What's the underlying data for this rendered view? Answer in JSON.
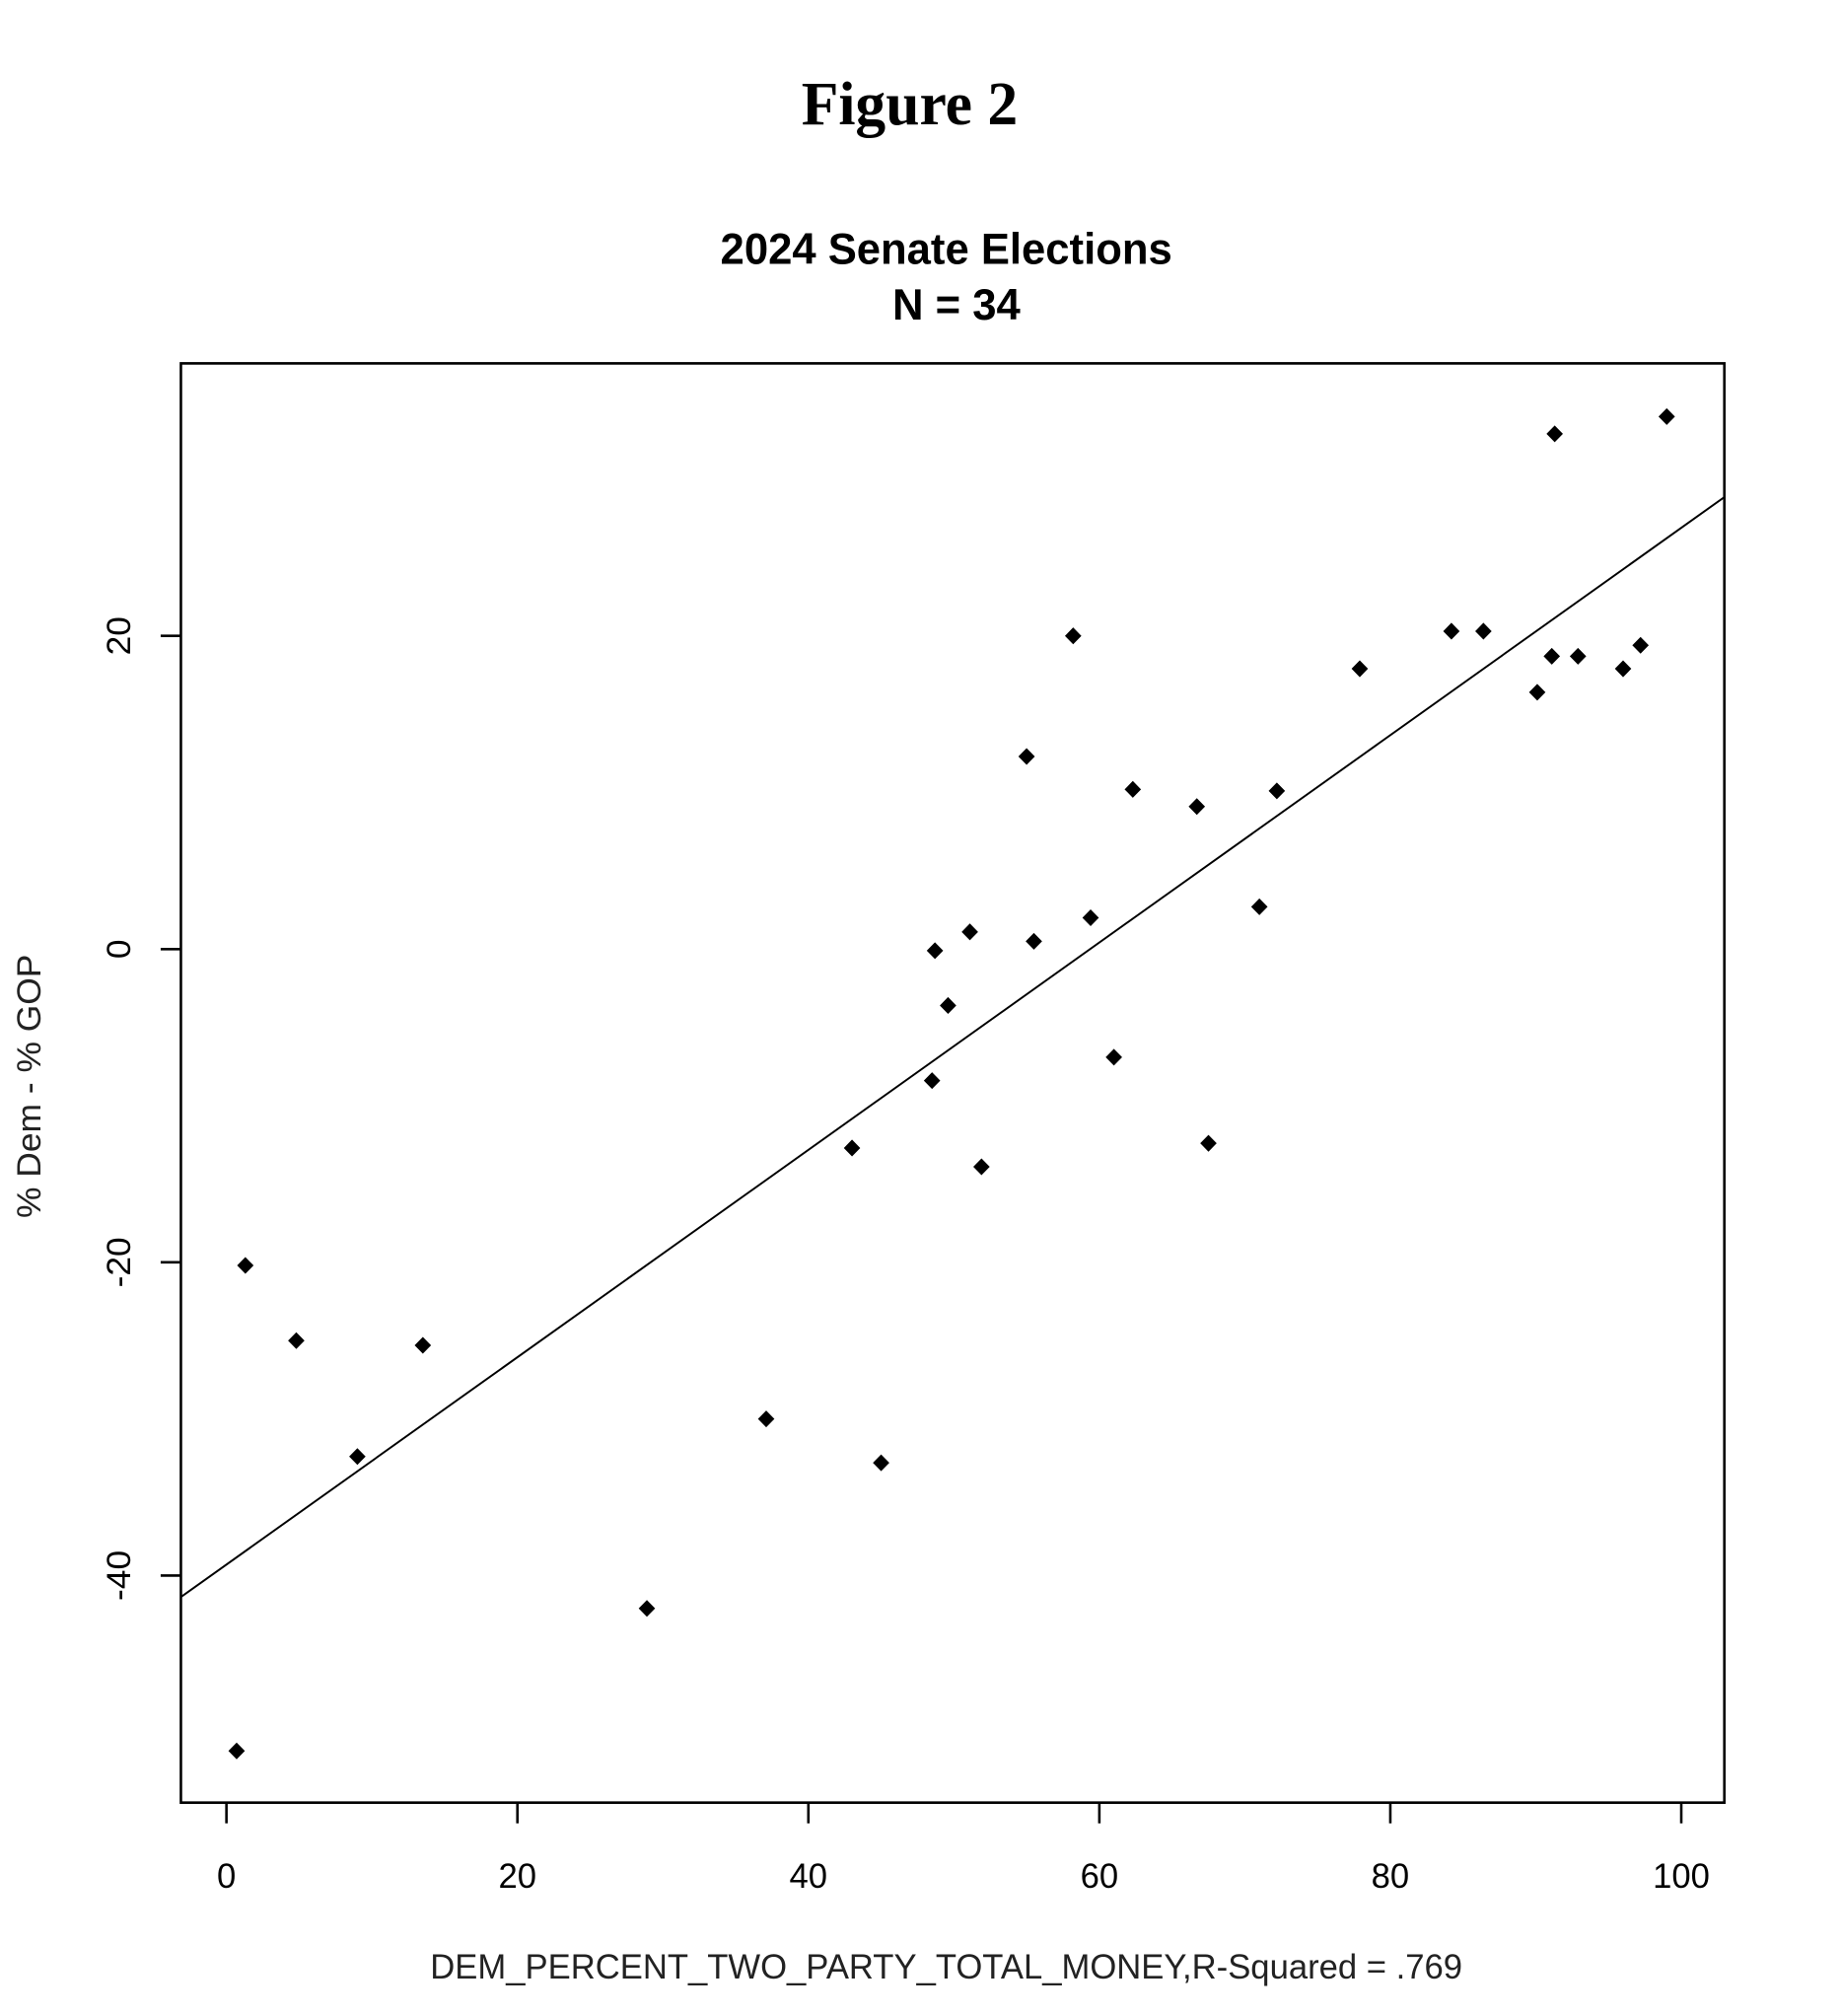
{
  "figure_label": "Figure 2",
  "chart_data": {
    "type": "scatter",
    "title": "2024 Senate Elections",
    "subtitle": "N = 34",
    "x_label": "DEM_PERCENT_TWO_PARTY_TOTAL_MONEY,R-Squared = .769",
    "y_label": "% Dem - % GOP",
    "color": "#000000",
    "x": [
      0.7,
      1.3,
      4.8,
      9.0,
      13.5,
      28.9,
      37.1,
      43.0,
      45.0,
      48.5,
      48.7,
      49.6,
      51.1,
      51.9,
      55.0,
      55.5,
      58.2,
      59.4,
      61.0,
      62.3,
      66.7,
      67.5,
      71.0,
      72.2,
      77.9,
      84.2,
      86.4,
      90.1,
      91.1,
      91.3,
      92.9,
      96.0,
      97.2,
      99.0
    ],
    "y": [
      -51.2,
      -20.2,
      -25.0,
      -32.4,
      -25.3,
      -42.1,
      -30.0,
      -12.7,
      -32.8,
      -8.4,
      -0.1,
      -3.6,
      1.1,
      -13.9,
      12.3,
      0.5,
      20.0,
      2.0,
      -6.9,
      10.2,
      9.1,
      -12.4,
      2.7,
      10.1,
      17.9,
      20.3,
      20.3,
      16.4,
      18.7,
      32.9,
      18.7,
      17.9,
      19.4,
      34.0
    ],
    "fit": {
      "slope": 0.662,
      "intercept": -39.3
    },
    "xlim": [
      -3.13,
      102.96
    ],
    "ylim": [
      -54.5,
      37.4
    ],
    "xticks": [
      0,
      20,
      40,
      60,
      80,
      100
    ],
    "yticks": [
      -40,
      -20,
      0,
      20
    ]
  }
}
